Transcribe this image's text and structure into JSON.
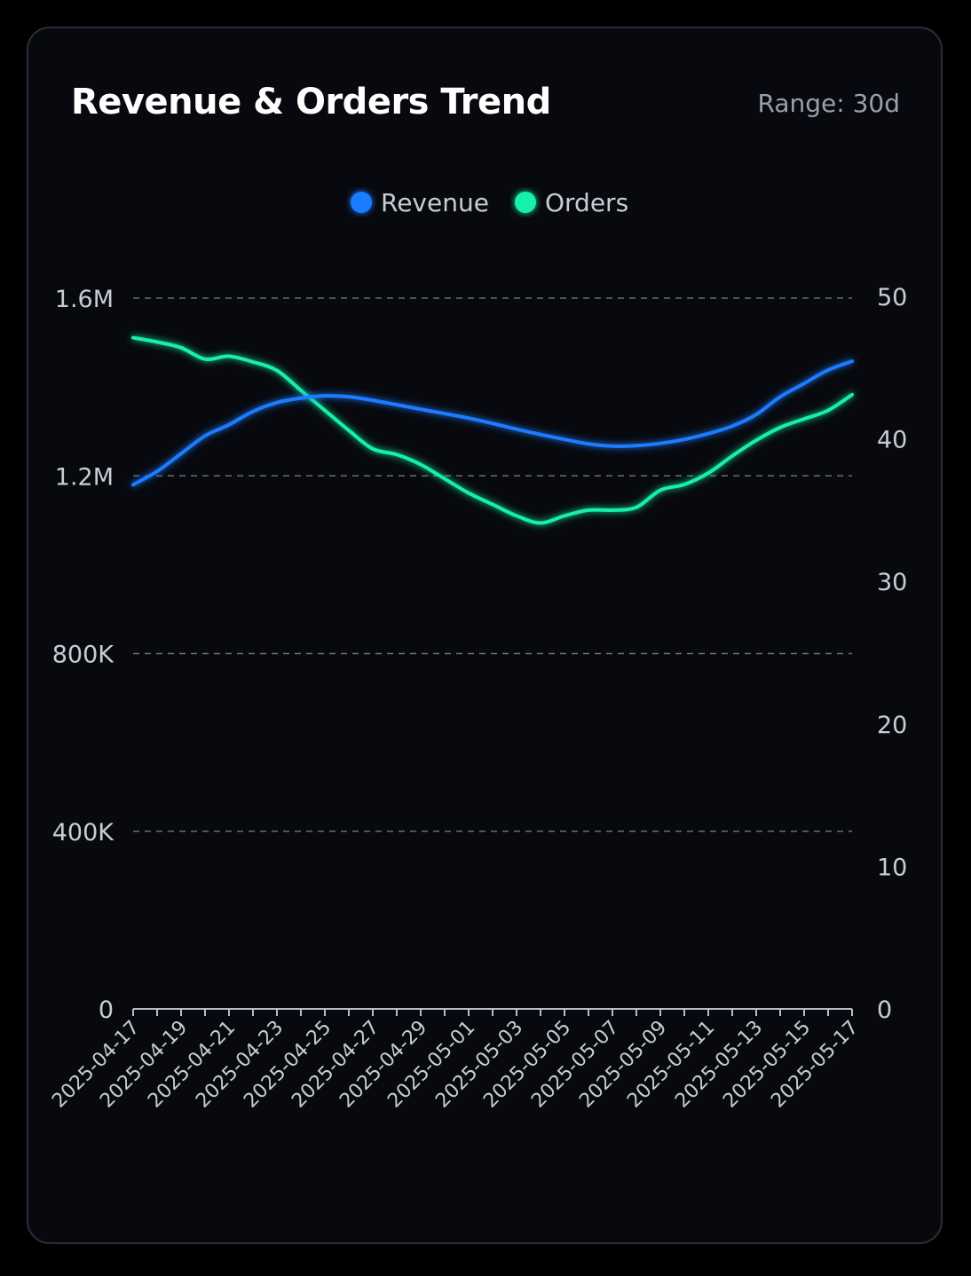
{
  "header": {
    "title": "Revenue & Orders Trend",
    "range_label": "Range: 30d"
  },
  "colors": {
    "revenue": "#1f7bff",
    "orders": "#19f0a8",
    "grid": "#8a8f98",
    "tick_text": "#c9ccd2",
    "background": "#07090e"
  },
  "chart_data": {
    "type": "line",
    "title": "Revenue & Orders Trend",
    "xlabel": "",
    "ylabel": "",
    "legend_position": "top-center",
    "grid": true,
    "x": [
      "2025-04-17",
      "2025-04-18",
      "2025-04-19",
      "2025-04-20",
      "2025-04-21",
      "2025-04-22",
      "2025-04-23",
      "2025-04-24",
      "2025-04-25",
      "2025-04-26",
      "2025-04-27",
      "2025-04-28",
      "2025-04-29",
      "2025-04-30",
      "2025-05-01",
      "2025-05-02",
      "2025-05-03",
      "2025-05-04",
      "2025-05-05",
      "2025-05-06",
      "2025-05-07",
      "2025-05-08",
      "2025-05-09",
      "2025-05-10",
      "2025-05-11",
      "2025-05-12",
      "2025-05-13",
      "2025-05-14",
      "2025-05-15",
      "2025-05-16",
      "2025-05-17"
    ],
    "x_tick_labels": [
      "2025-04-17",
      "2025-04-19",
      "2025-04-21",
      "2025-04-23",
      "2025-04-25",
      "2025-04-27",
      "2025-04-29",
      "2025-05-01",
      "2025-05-03",
      "2025-05-05",
      "2025-05-07",
      "2025-05-09",
      "2025-05-11",
      "2025-05-13",
      "2025-05-15",
      "2025-05-17"
    ],
    "y_left": {
      "ylim": [
        0,
        1600000
      ],
      "ticks": [
        0,
        400000,
        800000,
        1200000,
        1600000
      ],
      "tick_labels": [
        "0",
        "400K",
        "800K",
        "1.2M",
        "1.6M"
      ]
    },
    "y_right": {
      "ylim": [
        0,
        50
      ],
      "ticks": [
        0,
        10,
        20,
        30,
        40,
        50
      ],
      "tick_labels": [
        "0",
        "10",
        "20",
        "30",
        "40",
        "50"
      ]
    },
    "series": [
      {
        "name": "Revenue",
        "axis": "left",
        "values": [
          1180000,
          1210000,
          1250000,
          1290000,
          1315000,
          1345000,
          1365000,
          1375000,
          1380000,
          1378000,
          1370000,
          1360000,
          1350000,
          1340000,
          1330000,
          1318000,
          1305000,
          1293000,
          1282000,
          1272000,
          1267000,
          1268000,
          1273000,
          1282000,
          1295000,
          1312000,
          1338000,
          1378000,
          1408000,
          1438000,
          1458000
        ]
      },
      {
        "name": "Orders",
        "axis": "right",
        "values": [
          47.1,
          46.8,
          46.4,
          45.6,
          45.8,
          45.4,
          44.8,
          43.4,
          42.0,
          40.6,
          39.3,
          38.9,
          38.2,
          37.2,
          36.2,
          35.4,
          34.6,
          34.1,
          34.6,
          35.0,
          35.0,
          35.2,
          36.4,
          36.8,
          37.6,
          38.8,
          39.9,
          40.8,
          41.4,
          42.0,
          43.1
        ]
      }
    ]
  }
}
